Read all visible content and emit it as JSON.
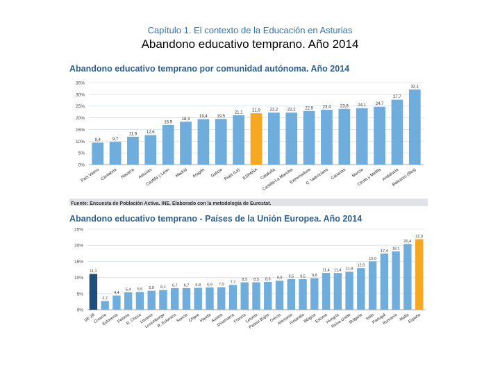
{
  "header": {
    "chapter": "Capítulo 1. El contexto de la Educación en Asturias",
    "title": "Abandono educativo temprano. Año 2014"
  },
  "colors": {
    "bar": "#6faedc",
    "highlight": "#f7a823",
    "eu": "#1f4e79",
    "title": "#2e5f8e",
    "axis": "#444444",
    "grid": "#c8d8e6"
  },
  "chart_data": [
    {
      "type": "bar",
      "title": "Abandono educativo temprano por comunidad autónoma. Año 2014",
      "categories": [
        "País Vasco",
        "Cantabria",
        "Navarra",
        "Asturias",
        "Castilla y León",
        "Madrid",
        "Aragón",
        "Galicia",
        "Rioja (La)",
        "ESPAÑA",
        "Cataluña",
        "Castilla-La Mancha",
        "Extremadura",
        "C. Valenciana",
        "Canarias",
        "Murcia",
        "Ceuta y Melilla",
        "Andalucía",
        "Baleares (Illes)"
      ],
      "values": [
        9.4,
        9.7,
        11.9,
        12.6,
        16.9,
        18.3,
        19.4,
        19.5,
        21.1,
        21.9,
        22.2,
        22.2,
        22.9,
        23.4,
        23.8,
        24.1,
        24.7,
        27.7,
        32.1
      ],
      "value_labels": [
        "9,4",
        "9,7",
        "11,9",
        "12,6",
        "16,9",
        "18,3",
        "19,4",
        "19,5",
        "21,1",
        "21,9",
        "22,2",
        "22,2",
        "22,9",
        "23,4",
        "23,8",
        "24,1",
        "24,7",
        "27,7",
        "32,1"
      ],
      "highlight_index": 9,
      "ylim": [
        0,
        35
      ],
      "yticks": [
        "0%",
        "5%",
        "10%",
        "15%",
        "20%",
        "25%",
        "30%",
        "35%"
      ],
      "source": "Fuente: Encuesta de Población Activa. INE. Elaborado con la metodología de Eurostat."
    },
    {
      "type": "bar",
      "title": "Abandono educativo temprano - Países de la Unión Europea. Año 2014",
      "categories": [
        "UE-28",
        "Croacia",
        "Eslovenia",
        "Polonia",
        "R. Checa",
        "Lituania",
        "Luxemburgo",
        "R. Eslovaca",
        "Suecia",
        "Chipre",
        "Irlanda",
        "Austria",
        "Dinamarca",
        "Francia",
        "Letonia",
        "Países Bajos",
        "Grecia",
        "Alemania",
        "Finlandia",
        "Bélgica",
        "Estonia",
        "Hungría",
        "Reino Unido",
        "Bulgaria",
        "Italia",
        "Portugal",
        "Rumanía",
        "Malta",
        "España"
      ],
      "values": [
        11.1,
        2.7,
        4.4,
        5.4,
        5.5,
        5.9,
        6.1,
        6.7,
        6.7,
        6.8,
        6.9,
        7.0,
        7.7,
        8.5,
        8.5,
        8.6,
        9.0,
        9.5,
        9.5,
        9.8,
        11.4,
        11.4,
        11.8,
        12.9,
        15.0,
        17.4,
        18.1,
        20.4,
        21.9
      ],
      "value_labels": [
        "11,1",
        "2,7",
        "4,4",
        "5,4",
        "5,5",
        "5,9",
        "6,1",
        "6,7",
        "6,7",
        "6,8",
        "6,9",
        "7,0",
        "7,7",
        "8,5",
        "8,5",
        "8,6",
        "9,0",
        "9,5",
        "9,5",
        "9,8",
        "11,4",
        "11,4",
        "11,8",
        "12,9",
        "15,0",
        "17,4",
        "18,1",
        "20,4",
        "21,9"
      ],
      "highlight_index": 28,
      "eu_index": 0,
      "ylim": [
        0,
        25
      ],
      "yticks": [
        "0%",
        "5%",
        "10%",
        "15%",
        "20%",
        "25%"
      ]
    }
  ]
}
